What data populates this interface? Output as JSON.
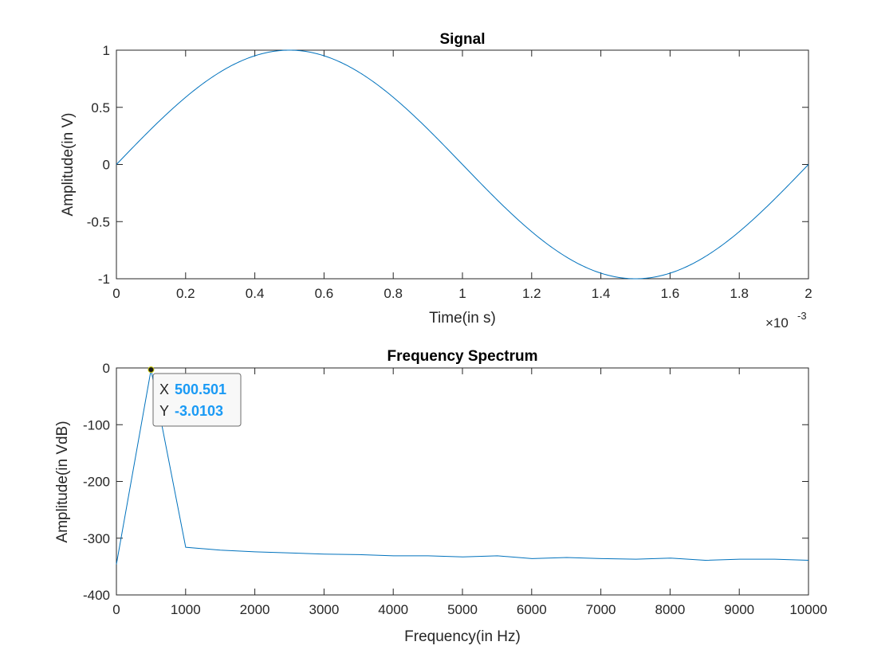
{
  "chart_data": [
    {
      "type": "line",
      "title": "Signal",
      "xlabel": "Time(in s)",
      "ylabel": "Amplitude(in V)",
      "x_exponent_label": "×10",
      "x_exponent_power": "-3",
      "xlim": [
        0,
        2
      ],
      "ylim": [
        -1,
        1
      ],
      "xticks": [
        0,
        0.2,
        0.4,
        0.6,
        0.8,
        1,
        1.2,
        1.4,
        1.6,
        1.8,
        2
      ],
      "xtick_labels": [
        "0",
        "0.2",
        "0.4",
        "0.6",
        "0.8",
        "1",
        "1.2",
        "1.4",
        "1.6",
        "1.8",
        "2"
      ],
      "yticks": [
        -1,
        -0.5,
        0,
        0.5,
        1
      ],
      "ytick_labels": [
        "-1",
        "-0.5",
        "0",
        "0.5",
        "1"
      ],
      "grid": false,
      "series": [
        {
          "color": "#0072BD",
          "function": "sin(2*pi*x/2)",
          "x_range": [
            0,
            2
          ]
        }
      ]
    },
    {
      "type": "line",
      "title": "Frequency Spectrum",
      "xlabel": "Frequency(in Hz)",
      "ylabel": "Amplitude(in VdB)",
      "xlim": [
        0,
        10000
      ],
      "ylim": [
        -400,
        0
      ],
      "xticks": [
        0,
        1000,
        2000,
        3000,
        4000,
        5000,
        6000,
        7000,
        8000,
        9000,
        10000
      ],
      "xtick_labels": [
        "0",
        "1000",
        "2000",
        "3000",
        "4000",
        "5000",
        "6000",
        "7000",
        "8000",
        "9000",
        "10000"
      ],
      "yticks": [
        -400,
        -300,
        -200,
        -100,
        0
      ],
      "ytick_labels": [
        "-400",
        "-300",
        "-200",
        "-100",
        "0"
      ],
      "grid": false,
      "series": [
        {
          "color": "#0072BD",
          "x": [
            0,
            500.5,
            1001,
            1501.5,
            2002,
            2502.5,
            3003,
            3503.5,
            4004,
            4504.5,
            5005,
            5505.5,
            6006,
            6506.5,
            7007,
            7507.5,
            8008,
            8508.5,
            9009,
            9509.5,
            10000
          ],
          "y": [
            -346,
            -3.0103,
            -316,
            -321,
            -324,
            -326,
            -328,
            -329,
            -331,
            -331,
            -333,
            -331,
            -336,
            -334,
            -336,
            -337,
            -335,
            -339,
            -337,
            -337,
            -339
          ]
        }
      ],
      "datatip": {
        "x_key": "X",
        "x_value": "500.501",
        "y_key": "Y",
        "y_value": "-3.0103",
        "x": 500.501,
        "y": -3.0103
      }
    }
  ]
}
